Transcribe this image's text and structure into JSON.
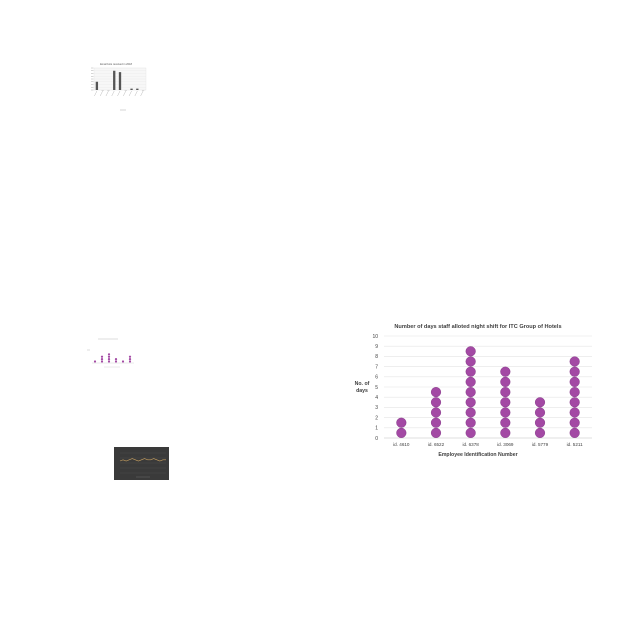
{
  "thumbnails": {
    "bar": {
      "title": "Email bots received in 2018",
      "values": [
        6,
        0,
        0,
        14,
        13,
        0,
        1,
        1,
        0
      ]
    },
    "dot": {
      "values": [
        1,
        3,
        4,
        2,
        1,
        3
      ]
    },
    "dark": {
      "values": [
        5,
        6,
        5,
        6,
        7,
        6,
        5,
        6,
        7,
        6,
        6,
        7,
        6,
        5,
        6,
        6
      ]
    }
  },
  "chart_data": {
    "type": "scatter",
    "title": "Number of days staff alloted night shift for ITC Group of Hotels",
    "xlabel": "Employee Identification Number",
    "ylabel": "No. of days",
    "categories": [
      "id. 4610",
      "id. 6522",
      "id. 6378",
      "id. 3069",
      "id. 5779",
      "id. 5211"
    ],
    "values": [
      2,
      5,
      9,
      7,
      4,
      8
    ],
    "ylim": [
      0,
      10
    ],
    "yticks": [
      "0",
      "1",
      "2",
      "3",
      "4",
      "5",
      "6",
      "7",
      "8",
      "9",
      "10"
    ],
    "grid": true,
    "dot_color": "#a349a4",
    "dot_stroke": "#7b2f7e"
  }
}
